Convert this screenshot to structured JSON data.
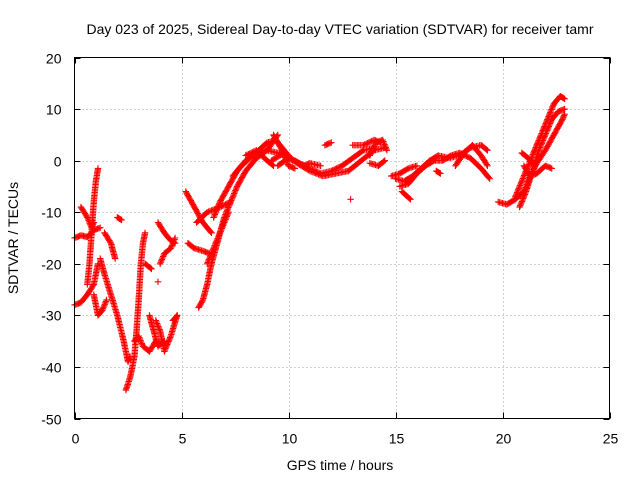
{
  "chart_data": {
    "type": "scatter",
    "title": "Day 023 of 2025, Sidereal Day-to-day VTEC variation (SDTVAR) for receiver tamr",
    "xlabel": "GPS time / hours",
    "ylabel": "SDTVAR / TECUs",
    "xlim": [
      0,
      25
    ],
    "ylim": [
      -50,
      20
    ],
    "xticks": [
      0,
      5,
      10,
      15,
      20,
      25
    ],
    "yticks": [
      -50,
      -40,
      -30,
      -20,
      -10,
      0,
      10,
      20
    ],
    "grid": true,
    "marker": "+",
    "color": "#ff0000",
    "series": [
      {
        "tracks": [
          [
            [
              0.0,
              -15.0
            ],
            [
              0.3,
              -14.5
            ],
            [
              0.6,
              -14.8
            ],
            [
              0.9,
              -13.5
            ],
            [
              1.2,
              -13.0
            ]
          ],
          [
            [
              0.0,
              -28.0
            ],
            [
              0.3,
              -27.5
            ],
            [
              0.6,
              -26.0
            ],
            [
              0.9,
              -24.0
            ],
            [
              1.0,
              -22.0
            ],
            [
              1.1,
              -20.0
            ]
          ],
          [
            [
              0.3,
              -9.0
            ],
            [
              0.6,
              -11.0
            ],
            [
              0.8,
              -13.0
            ],
            [
              0.9,
              -12.0
            ]
          ],
          [
            [
              0.6,
              -24.0
            ],
            [
              0.7,
              -20.0
            ],
            [
              0.8,
              -14.0
            ],
            [
              0.9,
              -8.0
            ],
            [
              1.0,
              -4.0
            ],
            [
              1.1,
              -1.5
            ]
          ],
          [
            [
              0.9,
              -26.0
            ],
            [
              1.1,
              -30.0
            ],
            [
              1.3,
              -29.0
            ],
            [
              1.5,
              -27.0
            ]
          ],
          [
            [
              1.2,
              -19.0
            ],
            [
              1.4,
              -22.0
            ],
            [
              1.7,
              -26.0
            ],
            [
              2.0,
              -30.0
            ],
            [
              2.3,
              -35.0
            ],
            [
              2.5,
              -39.0
            ],
            [
              2.6,
              -38.0
            ]
          ],
          [
            [
              1.4,
              -14.0
            ],
            [
              1.7,
              -16.0
            ],
            [
              1.9,
              -19.0
            ]
          ],
          [
            [
              2.0,
              -11.0
            ],
            [
              2.2,
              -11.5
            ]
          ],
          [
            [
              2.4,
              -44.5
            ],
            [
              2.6,
              -42.0
            ],
            [
              2.8,
              -38.0
            ],
            [
              2.9,
              -33.0
            ],
            [
              3.0,
              -27.0
            ],
            [
              3.1,
              -20.0
            ],
            [
              3.2,
              -16.0
            ],
            [
              3.3,
              -14.0
            ]
          ],
          [
            [
              2.8,
              -35.0
            ],
            [
              3.0,
              -34.0
            ],
            [
              3.2,
              -36.0
            ],
            [
              3.5,
              -37.0
            ],
            [
              3.8,
              -35.0
            ]
          ],
          [
            [
              3.3,
              -20.0
            ],
            [
              3.6,
              -21.0
            ]
          ],
          [
            [
              3.5,
              -30.0
            ],
            [
              3.7,
              -33.0
            ],
            [
              3.9,
              -36.0
            ],
            [
              4.2,
              -35.0
            ]
          ],
          [
            [
              3.8,
              -31.0
            ],
            [
              4.0,
              -33.0
            ],
            [
              4.2,
              -37.0
            ],
            [
              4.5,
              -34.0
            ],
            [
              4.8,
              -30.0
            ]
          ],
          [
            [
              3.9,
              -23.5
            ]
          ],
          [
            [
              4.0,
              -20.0
            ],
            [
              4.2,
              -18.0
            ],
            [
              4.5,
              -17.0
            ],
            [
              4.7,
              -15.0
            ]
          ],
          [
            [
              3.9,
              -12.0
            ],
            [
              4.2,
              -14.0
            ],
            [
              4.5,
              -15.5
            ],
            [
              4.7,
              -16.0
            ]
          ],
          [
            [
              4.6,
              -31.0
            ],
            [
              4.8,
              -30.0
            ]
          ],
          [
            [
              5.2,
              -6.0
            ],
            [
              5.6,
              -9.0
            ],
            [
              6.0,
              -12.0
            ],
            [
              6.4,
              -14.0
            ]
          ],
          [
            [
              5.3,
              -16.0
            ],
            [
              5.6,
              -17.0
            ],
            [
              6.0,
              -17.5
            ],
            [
              6.3,
              -18.0
            ]
          ],
          [
            [
              5.7,
              -12.0
            ],
            [
              6.2,
              -10.0
            ],
            [
              6.8,
              -9.0
            ],
            [
              7.3,
              -8.0
            ]
          ],
          [
            [
              5.8,
              -28.5
            ],
            [
              6.0,
              -27.0
            ],
            [
              6.2,
              -24.0
            ],
            [
              6.4,
              -20.0
            ],
            [
              6.6,
              -17.0
            ],
            [
              6.8,
              -14.0
            ],
            [
              7.0,
              -12.0
            ],
            [
              7.2,
              -10.0
            ]
          ],
          [
            [
              6.2,
              -20.0
            ],
            [
              6.5,
              -17.0
            ],
            [
              6.8,
              -14.0
            ],
            [
              7.0,
              -11.0
            ],
            [
              7.3,
              -8.0
            ],
            [
              7.6,
              -5.0
            ],
            [
              8.0,
              -2.0
            ],
            [
              8.5,
              0.5
            ],
            [
              9.0,
              2.0
            ],
            [
              9.5,
              5.0
            ]
          ],
          [
            [
              6.5,
              -11.0
            ],
            [
              6.8,
              -8.0
            ],
            [
              7.2,
              -5.0
            ],
            [
              7.6,
              -2.0
            ],
            [
              8.0,
              0.0
            ],
            [
              8.5,
              1.5
            ],
            [
              9.0,
              2.0
            ],
            [
              9.5,
              1.5
            ],
            [
              10.0,
              1.0
            ]
          ],
          [
            [
              7.4,
              -3.0
            ],
            [
              7.8,
              -1.0
            ],
            [
              8.2,
              0.5
            ],
            [
              8.6,
              2.0
            ],
            [
              9.0,
              3.5
            ],
            [
              9.4,
              4.0
            ],
            [
              9.8,
              2.0
            ],
            [
              10.2,
              0.0
            ]
          ],
          [
            [
              8.0,
              1.0
            ],
            [
              8.5,
              2.0
            ],
            [
              9.0,
              0.0
            ],
            [
              9.3,
              -1.0
            ]
          ],
          [
            [
              9.3,
              5.0
            ],
            [
              9.7,
              2.0
            ],
            [
              10.0,
              -1.0
            ],
            [
              10.3,
              -1.5
            ]
          ],
          [
            [
              9.5,
              -1.0
            ],
            [
              10.0,
              0.5
            ],
            [
              10.5,
              -0.5
            ],
            [
              11.0,
              -1.5
            ],
            [
              11.5,
              -2.5
            ],
            [
              12.0,
              -2.0
            ],
            [
              12.5,
              -1.0
            ],
            [
              13.0,
              0.5
            ],
            [
              13.5,
              2.0
            ],
            [
              14.0,
              2.5
            ]
          ],
          [
            [
              9.2,
              0.0
            ],
            [
              9.8,
              1.5
            ],
            [
              10.4,
              -0.5
            ],
            [
              11.0,
              -2.0
            ],
            [
              11.6,
              -3.0
            ],
            [
              12.2,
              -2.5
            ],
            [
              12.8,
              -2.0
            ],
            [
              13.4,
              0.0
            ],
            [
              14.0,
              2.0
            ],
            [
              14.5,
              2.5
            ]
          ],
          [
            [
              10.3,
              0.0
            ],
            [
              10.7,
              -1.0
            ],
            [
              11.0,
              -0.5
            ],
            [
              11.5,
              -1.0
            ]
          ],
          [
            [
              11.7,
              3.0
            ],
            [
              12.0,
              3.5
            ]
          ],
          [
            [
              13.0,
              3.0
            ],
            [
              13.5,
              3.0
            ],
            [
              14.0,
              4.0
            ],
            [
              14.3,
              3.5
            ]
          ],
          [
            [
              13.8,
              1.0
            ],
            [
              14.1,
              3.5
            ],
            [
              14.4,
              4.0
            ],
            [
              14.6,
              2.0
            ]
          ],
          [
            [
              13.8,
              -0.5
            ],
            [
              14.2,
              -1.0
            ],
            [
              14.5,
              0.0
            ]
          ],
          [
            [
              12.9,
              -7.5
            ]
          ],
          [
            [
              14.8,
              -3.0
            ],
            [
              15.2,
              -2.5
            ],
            [
              15.6,
              -1.5
            ],
            [
              16.0,
              -1.0
            ]
          ],
          [
            [
              15.0,
              -3.5
            ],
            [
              15.4,
              -4.0
            ],
            [
              15.8,
              -3.0
            ],
            [
              16.2,
              -1.5
            ],
            [
              16.6,
              0.0
            ],
            [
              17.0,
              1.0
            ],
            [
              17.5,
              0.5
            ],
            [
              18.0,
              1.0
            ],
            [
              18.5,
              2.5
            ],
            [
              19.0,
              3.0
            ],
            [
              19.3,
              2.0
            ]
          ],
          [
            [
              15.2,
              -5.0
            ],
            [
              15.6,
              -4.5
            ],
            [
              16.0,
              -2.5
            ],
            [
              16.4,
              -1.0
            ],
            [
              16.8,
              0.0
            ],
            [
              17.2,
              0.0
            ],
            [
              17.6,
              1.0
            ],
            [
              18.0,
              1.5
            ],
            [
              18.5,
              0.5
            ],
            [
              19.0,
              -1.5
            ],
            [
              19.4,
              -3.5
            ]
          ],
          [
            [
              15.3,
              -6.0
            ],
            [
              15.7,
              -7.5
            ]
          ],
          [
            [
              16.9,
              -2.0
            ],
            [
              17.1,
              -2.5
            ]
          ],
          [
            [
              17.8,
              -1.0
            ],
            [
              18.2,
              1.5
            ],
            [
              18.6,
              3.0
            ],
            [
              19.0,
              1.0
            ],
            [
              19.3,
              -1.0
            ]
          ],
          [
            [
              19.8,
              -8.0
            ],
            [
              20.2,
              -8.5
            ],
            [
              20.6,
              -7.5
            ],
            [
              21.0,
              -6.0
            ],
            [
              21.3,
              -3.0
            ],
            [
              21.6,
              -0.5
            ],
            [
              22.0,
              2.0
            ],
            [
              22.4,
              5.0
            ],
            [
              22.8,
              8.0
            ],
            [
              22.9,
              9.0
            ]
          ],
          [
            [
              20.6,
              -7.0
            ],
            [
              20.9,
              -4.0
            ],
            [
              21.2,
              -1.0
            ],
            [
              21.5,
              2.0
            ],
            [
              21.8,
              5.0
            ],
            [
              22.1,
              8.0
            ],
            [
              22.4,
              11.0
            ],
            [
              22.7,
              12.5
            ],
            [
              22.9,
              12.0
            ]
          ],
          [
            [
              20.8,
              -9.0
            ],
            [
              21.1,
              -6.0
            ],
            [
              21.4,
              -2.0
            ],
            [
              21.7,
              2.0
            ],
            [
              22.0,
              5.0
            ],
            [
              22.3,
              8.0
            ],
            [
              22.6,
              9.5
            ],
            [
              22.9,
              10.0
            ]
          ],
          [
            [
              21.0,
              -1.0
            ],
            [
              21.3,
              -3.0
            ],
            [
              21.6,
              -2.5
            ],
            [
              22.0,
              -1.0
            ],
            [
              22.3,
              -1.5
            ]
          ],
          [
            [
              20.9,
              1.5
            ],
            [
              21.2,
              0.5
            ],
            [
              21.5,
              -1.0
            ]
          ]
        ]
      }
    ]
  }
}
